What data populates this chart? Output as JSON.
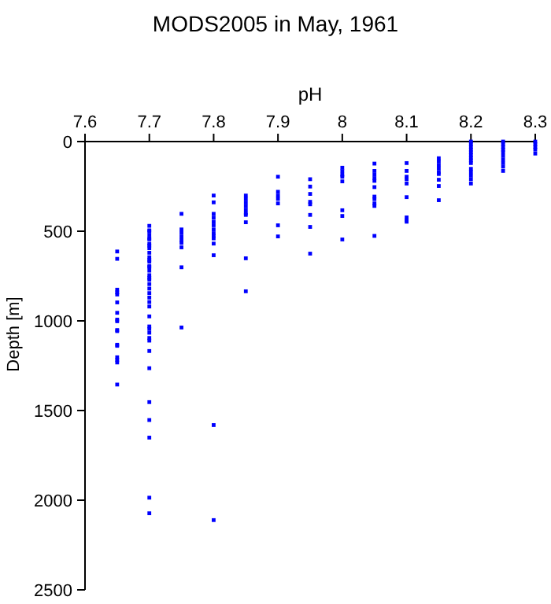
{
  "chart_data": {
    "type": "scatter",
    "title": "MODS2005 in May, 1961",
    "xlabel": "pH",
    "ylabel": "Depth [m]",
    "xlim": [
      7.6,
      8.3
    ],
    "xticks": [
      7.6,
      7.7,
      7.8,
      7.9,
      8,
      8.1,
      8.2,
      8.3
    ],
    "ylim": [
      2500,
      0
    ],
    "yticks": [
      0,
      500,
      1000,
      1500,
      2000,
      2500
    ],
    "grid": false,
    "marker": "square",
    "series": [
      {
        "color": "#0000ff",
        "x": [
          7.65,
          7.65,
          7.65,
          7.65,
          7.65,
          7.65,
          7.65,
          7.65,
          7.65,
          7.65,
          7.65,
          7.65,
          7.65,
          7.65,
          7.65,
          7.65,
          7.65,
          7.7,
          7.7,
          7.7,
          7.7,
          7.7,
          7.7,
          7.7,
          7.7,
          7.7,
          7.7,
          7.7,
          7.7,
          7.7,
          7.7,
          7.7,
          7.7,
          7.7,
          7.7,
          7.7,
          7.7,
          7.7,
          7.7,
          7.7,
          7.7,
          7.7,
          7.7,
          7.7,
          7.7,
          7.7,
          7.7,
          7.7,
          7.7,
          7.7,
          7.7,
          7.7,
          7.7,
          7.7,
          7.7,
          7.75,
          7.75,
          7.75,
          7.75,
          7.75,
          7.75,
          7.75,
          7.75,
          7.75,
          7.8,
          7.8,
          7.8,
          7.8,
          7.8,
          7.8,
          7.8,
          7.8,
          7.8,
          7.8,
          7.8,
          7.8,
          7.8,
          7.8,
          7.85,
          7.85,
          7.85,
          7.85,
          7.85,
          7.85,
          7.85,
          7.85,
          7.85,
          7.85,
          7.9,
          7.9,
          7.9,
          7.9,
          7.9,
          7.9,
          7.9,
          7.95,
          7.95,
          7.95,
          7.95,
          7.95,
          7.95,
          7.95,
          7.95,
          8,
          8,
          8,
          8,
          8,
          8,
          8,
          8,
          8.05,
          8.05,
          8.05,
          8.05,
          8.05,
          8.05,
          8.05,
          8.05,
          8.05,
          8.05,
          8.05,
          8.1,
          8.1,
          8.1,
          8.1,
          8.1,
          8.1,
          8.1,
          8.1,
          8.1,
          8.15,
          8.15,
          8.15,
          8.15,
          8.15,
          8.15,
          8.15,
          8.15,
          8.15,
          8.2,
          8.2,
          8.2,
          8.2,
          8.2,
          8.2,
          8.2,
          8.2,
          8.2,
          8.2,
          8.2,
          8.2,
          8.2,
          8.2,
          8.25,
          8.25,
          8.25,
          8.25,
          8.25,
          8.25,
          8.25,
          8.25,
          8.25,
          8.25,
          8.3,
          8.3,
          8.3,
          8.3,
          8.3
        ],
        "values": [
          613,
          654,
          826,
          841,
          853,
          897,
          955,
          993,
          1002,
          1051,
          1057,
          1133,
          1139,
          1203,
          1218,
          1232,
          1355,
          470,
          495,
          520,
          545,
          570,
          595,
          620,
          645,
          670,
          695,
          720,
          745,
          770,
          795,
          820,
          845,
          870,
          895,
          920,
          975,
          1031,
          1045,
          1066,
          1095,
          1110,
          1168,
          1264,
          1453,
          1553,
          1651,
          1986,
          2073,
          500,
          540,
          580,
          660,
          700,
          760,
          403,
          490,
          510,
          530,
          550,
          565,
          590,
          701,
          1037,
          301,
          339,
          403,
          424,
          447,
          467,
          490,
          511,
          526,
          540,
          569,
          634,
          1581,
          2111,
          301,
          320,
          340,
          360,
          380,
          400,
          409,
          450,
          651,
          835,
          196,
          280,
          301,
          320,
          345,
          467,
          529,
          210,
          251,
          292,
          336,
          350,
          409,
          476,
          625,
          146,
          165,
          185,
          196,
          222,
          383,
          415,
          546,
          123,
          164,
          184,
          204,
          219,
          254,
          307,
          321,
          345,
          359,
          526,
          120,
          164,
          196,
          210,
          234,
          310,
          423,
          438,
          447,
          93,
          110,
          130,
          150,
          170,
          181,
          213,
          248,
          327,
          0,
          15,
          30,
          45,
          60,
          75,
          90,
          105,
          120,
          152,
          170,
          190,
          210,
          234,
          0,
          15,
          30,
          45,
          60,
          80,
          100,
          120,
          140,
          164,
          0,
          15,
          30,
          45,
          67
        ]
      }
    ]
  }
}
